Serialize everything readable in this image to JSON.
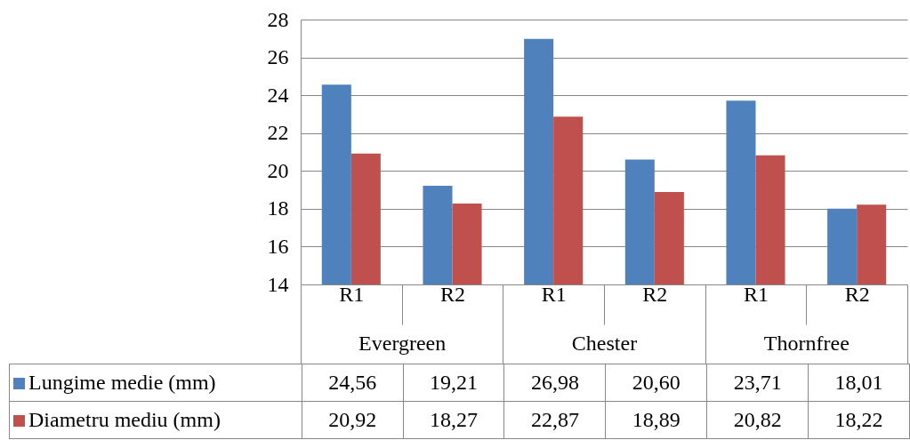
{
  "chart_data": {
    "type": "bar",
    "categories": [
      "R1",
      "R2",
      "R1",
      "R2",
      "R1",
      "R2"
    ],
    "series": [
      {
        "name": "Lungime medie (mm)",
        "color": "#4f81bd",
        "values": [
          24.56,
          19.21,
          26.98,
          20.6,
          23.71,
          18.01
        ],
        "value_labels": [
          "24,56",
          "19,21",
          "26,98",
          "20,60",
          "23,71",
          "18,01"
        ]
      },
      {
        "name": "Diametru mediu (mm)",
        "color": "#c0504d",
        "values": [
          20.92,
          18.27,
          22.87,
          18.89,
          20.82,
          18.22
        ],
        "value_labels": [
          "20,92",
          "18,27",
          "22,87",
          "18,89",
          "20,82",
          "18,22"
        ]
      }
    ],
    "annotations": [
      "Evergreen",
      "Chester",
      "Thornfree"
    ],
    "ylim": [
      14,
      28
    ],
    "yticks": [
      14,
      16,
      18,
      20,
      22,
      24,
      26,
      28
    ],
    "grid": "y",
    "legend": "bottom"
  }
}
